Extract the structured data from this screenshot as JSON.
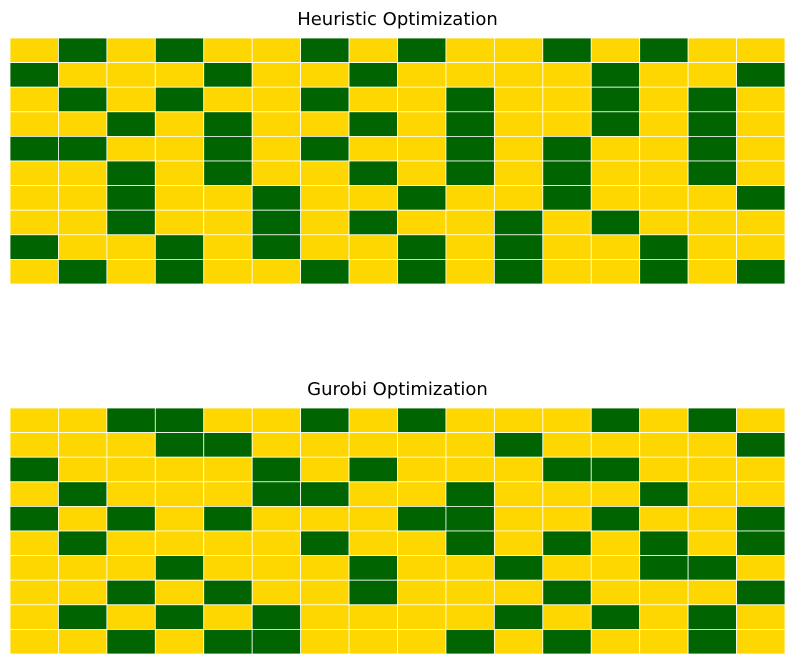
{
  "colors": {
    "value_0": "#FFD700",
    "value_1": "#006400",
    "gridline": "#FFFFFF",
    "background": "#FFFFFF",
    "title": "#000000"
  },
  "chart_data": [
    {
      "type": "heatmap",
      "title": "Heuristic Optimization",
      "rows": 10,
      "cols": 16,
      "values": [
        [
          0,
          1,
          0,
          1,
          0,
          0,
          1,
          0,
          1,
          0,
          0,
          1,
          0,
          1,
          0,
          0
        ],
        [
          1,
          0,
          0,
          0,
          1,
          0,
          0,
          1,
          0,
          0,
          0,
          0,
          1,
          0,
          0,
          1
        ],
        [
          0,
          1,
          0,
          1,
          0,
          0,
          1,
          0,
          0,
          1,
          0,
          0,
          1,
          0,
          1,
          0
        ],
        [
          0,
          0,
          1,
          0,
          1,
          0,
          0,
          1,
          0,
          1,
          0,
          0,
          1,
          0,
          1,
          0
        ],
        [
          1,
          1,
          0,
          0,
          1,
          0,
          1,
          0,
          0,
          1,
          0,
          1,
          0,
          0,
          1,
          0
        ],
        [
          0,
          0,
          1,
          0,
          1,
          0,
          0,
          1,
          0,
          1,
          0,
          1,
          0,
          0,
          1,
          0
        ],
        [
          0,
          0,
          1,
          0,
          0,
          1,
          0,
          0,
          1,
          0,
          0,
          1,
          0,
          0,
          0,
          1
        ],
        [
          0,
          0,
          1,
          0,
          0,
          1,
          0,
          1,
          0,
          0,
          1,
          0,
          1,
          0,
          0,
          0
        ],
        [
          1,
          0,
          0,
          1,
          0,
          1,
          0,
          0,
          1,
          0,
          1,
          0,
          0,
          1,
          0,
          0
        ],
        [
          0,
          1,
          0,
          1,
          0,
          0,
          1,
          0,
          1,
          0,
          1,
          0,
          0,
          1,
          0,
          1
        ]
      ],
      "xlabel": "",
      "ylabel": "",
      "axes_visible": false,
      "grid": true
    },
    {
      "type": "heatmap",
      "title": "Gurobi Optimization",
      "rows": 10,
      "cols": 16,
      "values": [
        [
          0,
          0,
          1,
          1,
          0,
          0,
          1,
          0,
          1,
          0,
          0,
          0,
          1,
          0,
          1,
          0
        ],
        [
          0,
          0,
          0,
          1,
          1,
          0,
          0,
          0,
          0,
          0,
          1,
          0,
          0,
          0,
          0,
          1
        ],
        [
          1,
          0,
          0,
          0,
          0,
          1,
          0,
          1,
          0,
          0,
          0,
          1,
          1,
          0,
          0,
          0
        ],
        [
          0,
          1,
          0,
          0,
          0,
          1,
          1,
          0,
          0,
          1,
          0,
          0,
          0,
          1,
          0,
          0
        ],
        [
          1,
          0,
          1,
          0,
          1,
          0,
          0,
          0,
          1,
          1,
          0,
          0,
          1,
          0,
          0,
          1
        ],
        [
          0,
          1,
          0,
          0,
          0,
          0,
          1,
          0,
          0,
          1,
          0,
          1,
          0,
          1,
          0,
          1
        ],
        [
          0,
          0,
          0,
          1,
          0,
          0,
          0,
          1,
          0,
          0,
          1,
          0,
          0,
          1,
          1,
          0
        ],
        [
          0,
          0,
          1,
          0,
          1,
          0,
          0,
          1,
          0,
          0,
          0,
          1,
          0,
          0,
          0,
          1
        ],
        [
          0,
          1,
          0,
          1,
          0,
          1,
          0,
          0,
          0,
          0,
          1,
          0,
          1,
          0,
          1,
          0
        ],
        [
          0,
          0,
          1,
          0,
          1,
          1,
          0,
          0,
          0,
          1,
          0,
          1,
          0,
          0,
          1,
          0
        ]
      ],
      "xlabel": "",
      "ylabel": "",
      "axes_visible": false,
      "grid": true
    }
  ]
}
